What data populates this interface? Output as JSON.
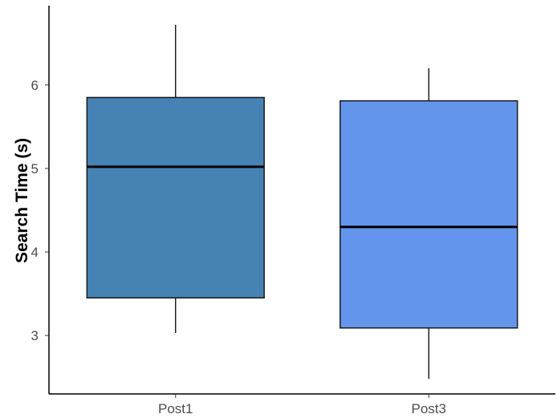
{
  "chart_data": {
    "type": "box",
    "title": "",
    "xlabel": "",
    "ylabel": "Search Time (s)",
    "ylim": [
      2.3,
      6.95
    ],
    "yticks": [
      3,
      4,
      5,
      6
    ],
    "grid": false,
    "legend": "none",
    "categories": [
      "Post1",
      "Post3"
    ],
    "boxes": [
      {
        "category": "Post1",
        "min": 3.03,
        "q1": 3.45,
        "median": 5.02,
        "q3": 5.85,
        "max": 6.72,
        "color": "#4682B4"
      },
      {
        "category": "Post3",
        "min": 2.48,
        "q1": 3.09,
        "median": 4.3,
        "q3": 5.81,
        "max": 6.2,
        "color": "#6495ED"
      }
    ]
  }
}
